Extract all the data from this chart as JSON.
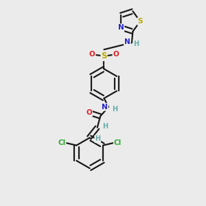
{
  "bg_color": "#ebebeb",
  "bond_color": "#1a1a1a",
  "bond_width": 1.6,
  "atom_colors": {
    "C": "#1a1a1a",
    "H": "#6aacac",
    "N": "#2222cc",
    "O": "#dd2222",
    "S": "#bbaa00",
    "Cl": "#33aa33"
  },
  "font_size": 7.5,
  "fig_size": [
    3.0,
    3.0
  ],
  "dpi": 100
}
